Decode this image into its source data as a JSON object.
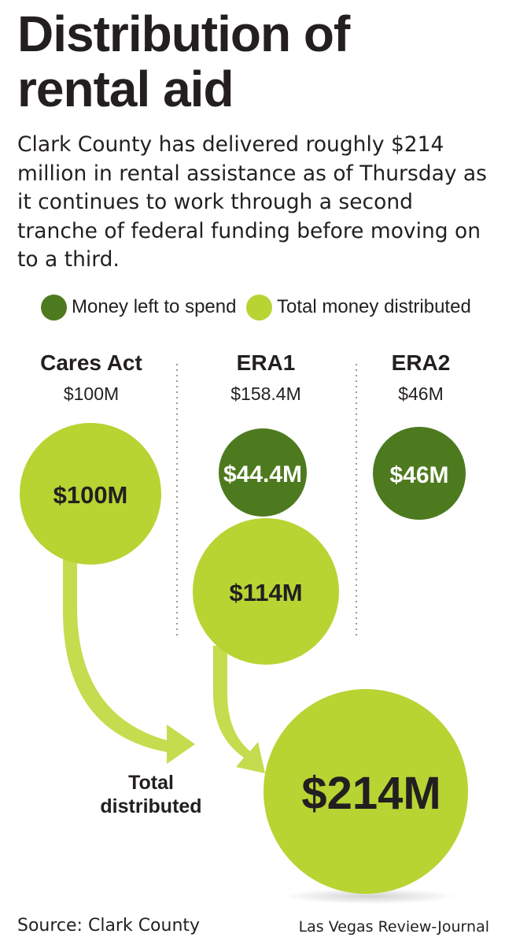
{
  "title": "Distribution of rental aid",
  "subtitle": "Clark County has delivered roughly $214 million in rental assistance as of Thursday as it continues to work through a second tranche of federal funding before moving on to a third.",
  "source": "Source: Clark County",
  "credit": "Las Vegas Review-Journal",
  "colors": {
    "left_to_spend": "#4e7a1f",
    "distributed": "#b7d433",
    "arrow": "#c4dc4e",
    "text": "#231f20",
    "divider": "#9a9a9a"
  },
  "chart_data": {
    "type": "bubble",
    "legend": [
      {
        "label": "Money left to spend",
        "color": "#4e7a1f"
      },
      {
        "label": "Total money distributed",
        "color": "#b7d433"
      }
    ],
    "groups": [
      {
        "name": "Cares Act",
        "total_label": "$100M",
        "total": 100,
        "distributed": 100,
        "distributed_label": "$100M",
        "left_to_spend": 0,
        "left_to_spend_label": ""
      },
      {
        "name": "ERA1",
        "total_label": "$158.4M",
        "total": 158.4,
        "distributed": 114,
        "distributed_label": "$114M",
        "left_to_spend": 44.4,
        "left_to_spend_label": "$44.4M"
      },
      {
        "name": "ERA2",
        "total_label": "$46M",
        "total": 46,
        "distributed": 0,
        "distributed_label": "",
        "left_to_spend": 46,
        "left_to_spend_label": "$46M"
      }
    ],
    "total": {
      "label": "Total distributed",
      "label_lines": [
        "Total",
        "distributed"
      ],
      "value": 214,
      "value_label": "$214M"
    }
  }
}
